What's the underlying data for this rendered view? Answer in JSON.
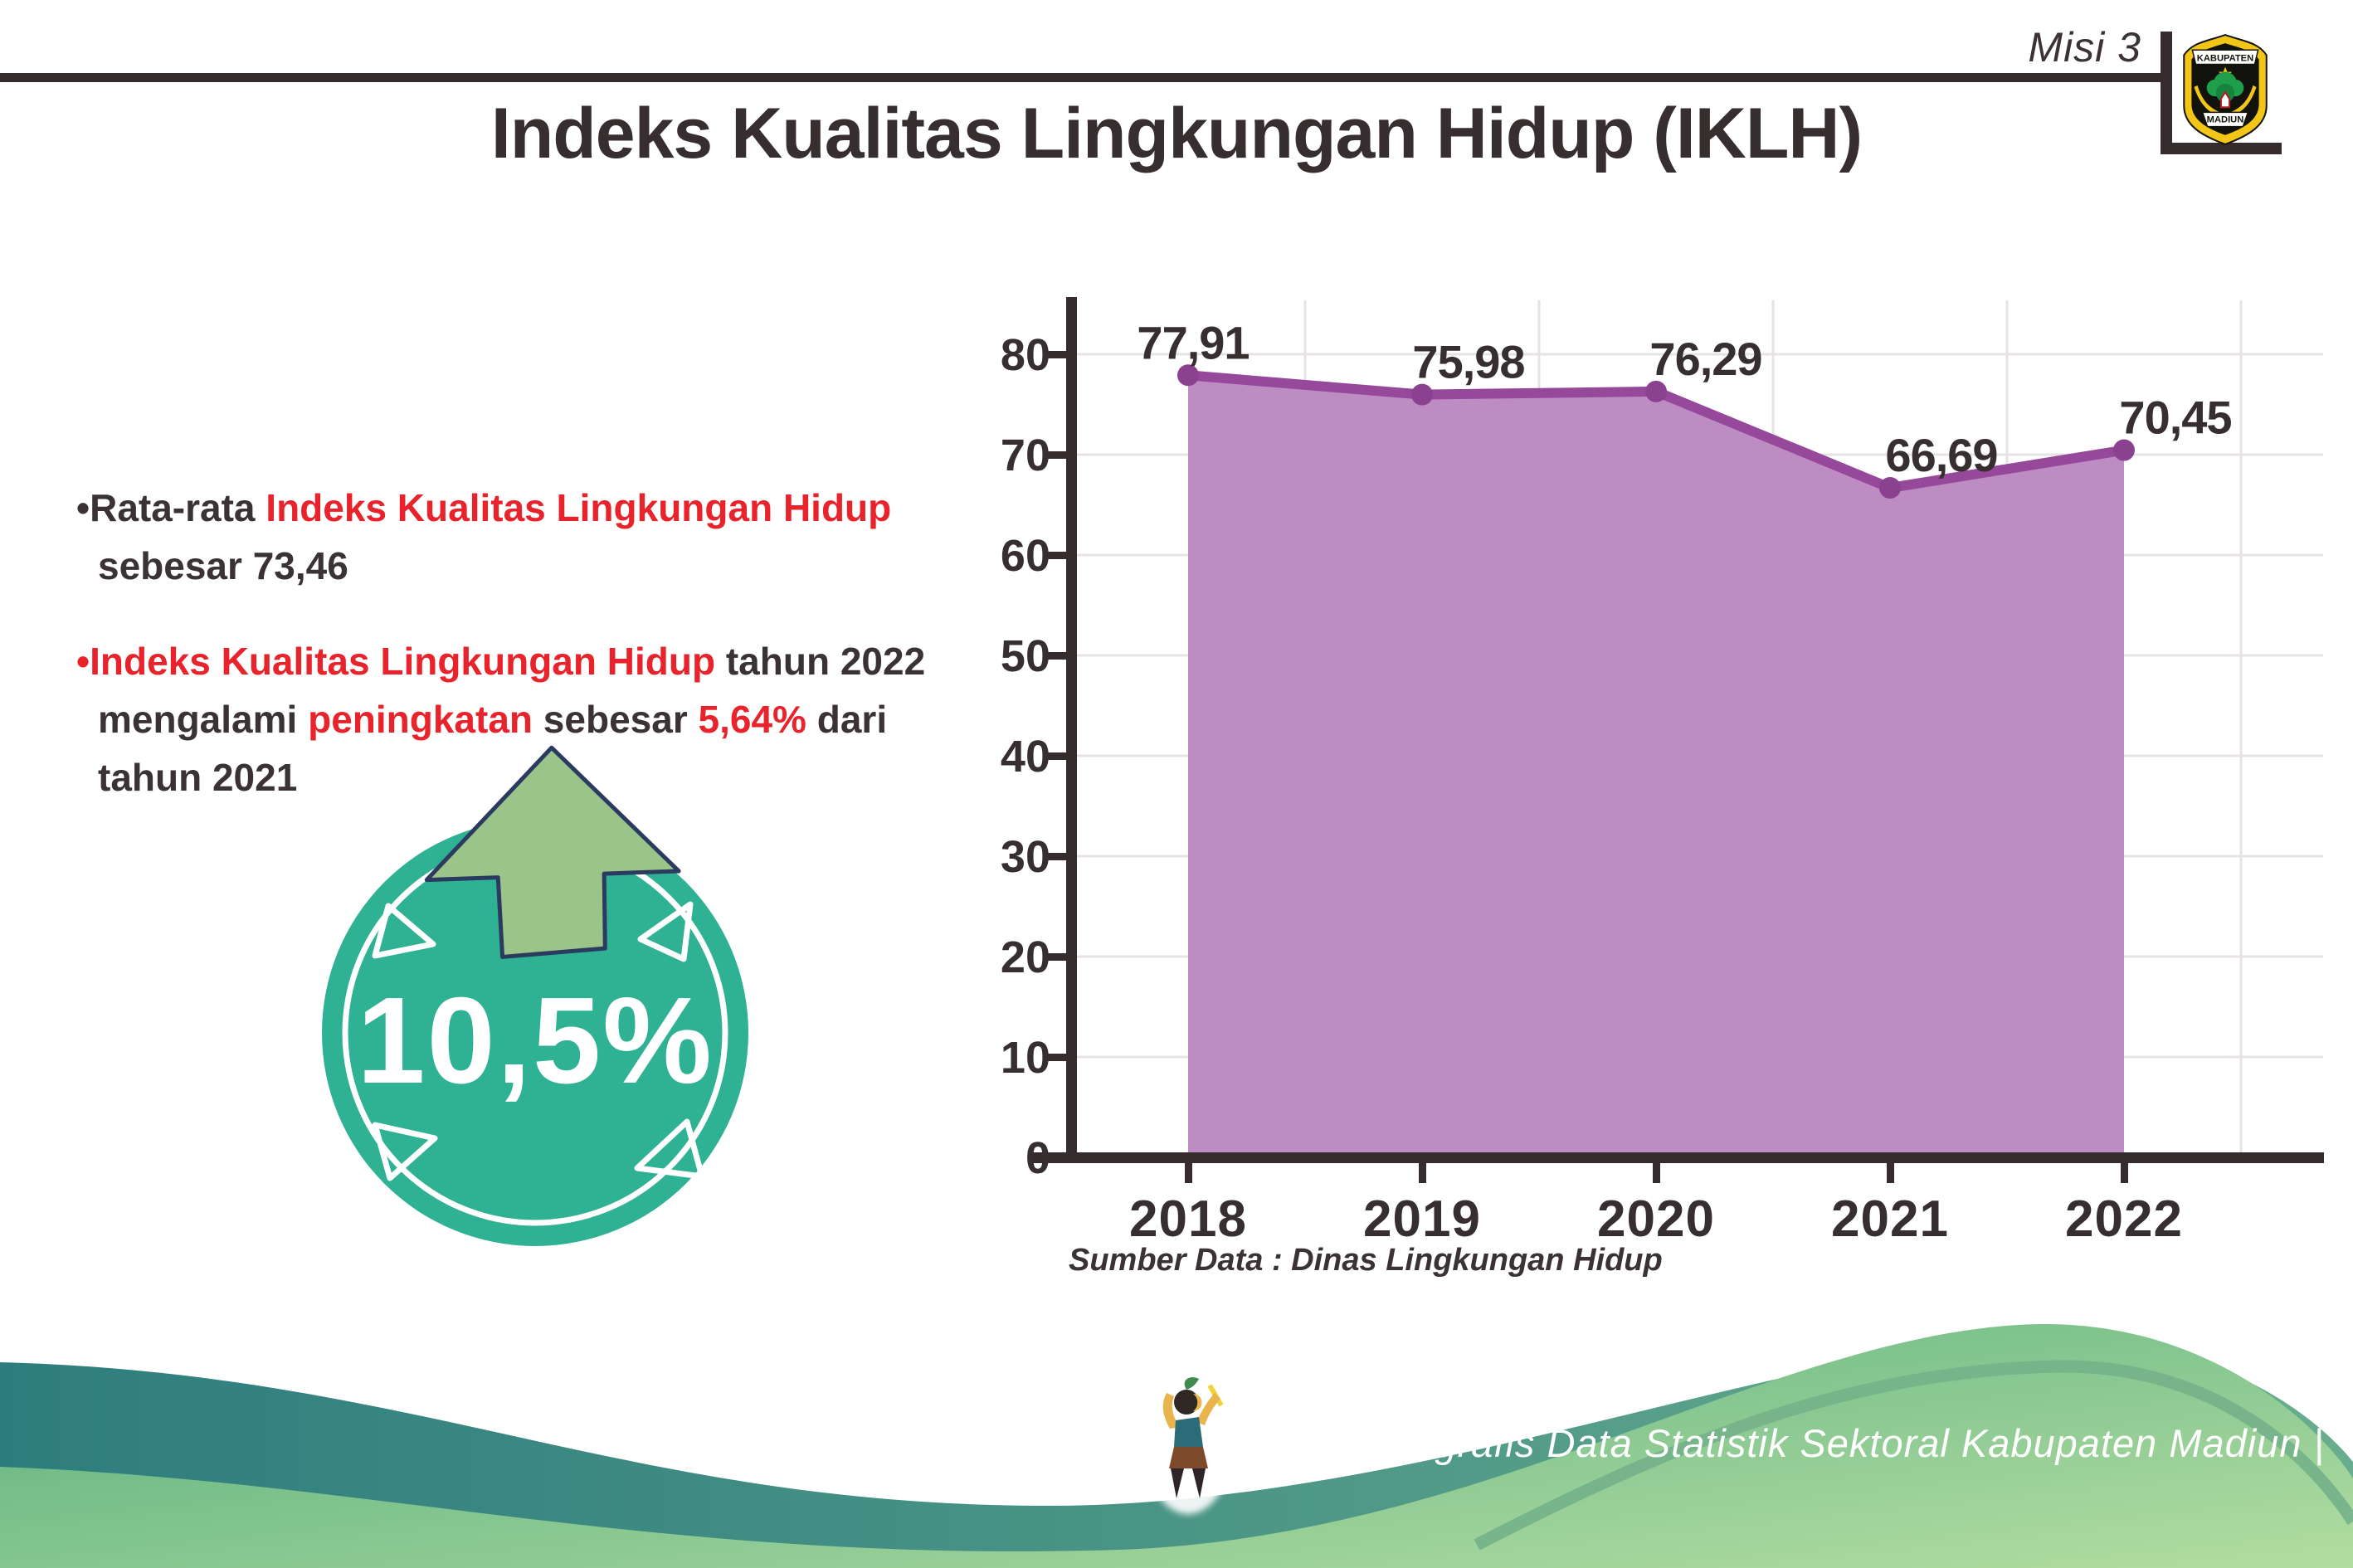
{
  "header": {
    "misi_label": "Misi 3",
    "logo": {
      "top_text": "KABUPATEN",
      "bottom_text": "MADIUN"
    }
  },
  "title": "Indeks Kualitas Lingkungan Hidup (IKLH)",
  "bullets": {
    "b1l1": [
      {
        "t": "•Rata-rata "
      },
      {
        "t": "Indeks Kualitas Lingkungan Hidup"
      }
    ],
    "b1l2": [
      {
        "t": "sebesar 73,46"
      }
    ],
    "b2l1": [
      {
        "t": "•"
      },
      {
        "t": "Indeks Kualitas Lingkungan Hidup"
      },
      {
        "t": " tahun 2022"
      }
    ],
    "b2l2": [
      {
        "t": "mengalami "
      },
      {
        "t": "peningkatan"
      },
      {
        "t": " sebesar "
      },
      {
        "t": "5,64%"
      },
      {
        "t": " dari"
      }
    ],
    "b2l3": [
      {
        "t": "tahun 2021"
      }
    ]
  },
  "badge": {
    "value": "10,5%"
  },
  "chart_data": {
    "type": "area",
    "categories": [
      "2018",
      "2019",
      "2020",
      "2021",
      "2022"
    ],
    "values": [
      77.91,
      75.98,
      76.29,
      66.69,
      70.45
    ],
    "value_labels": [
      "77,91",
      "75,98",
      "76,29",
      "66,69",
      "70,45"
    ],
    "yticks": [
      "80",
      "70",
      "60",
      "50",
      "40",
      "30",
      "20",
      "10",
      "0"
    ],
    "ylim": [
      0,
      86
    ],
    "grid": true,
    "legend": "none",
    "line_color": "#96489a",
    "marker_color": "#8a4190",
    "fill_color": "#bd8cc3",
    "source": "Sumber Data : Dinas Lingkungan Hidup"
  },
  "footer": {
    "text": "Media Infografis Data Statistik Sektoral Kabupaten Madiun |"
  },
  "colors": {
    "dark_text": "#3a3233",
    "red_text": "#e8232b",
    "badge_teal": "#2fb193",
    "badge_arrow_green": "#9ac489",
    "badge_arrow_outline": "#2b3a5f",
    "footer_teal_start": "#2e7d7e",
    "footer_teal_end": "#68ad8e",
    "footer_green_start": "#57ae7e",
    "footer_green_end": "#b2dda1"
  }
}
